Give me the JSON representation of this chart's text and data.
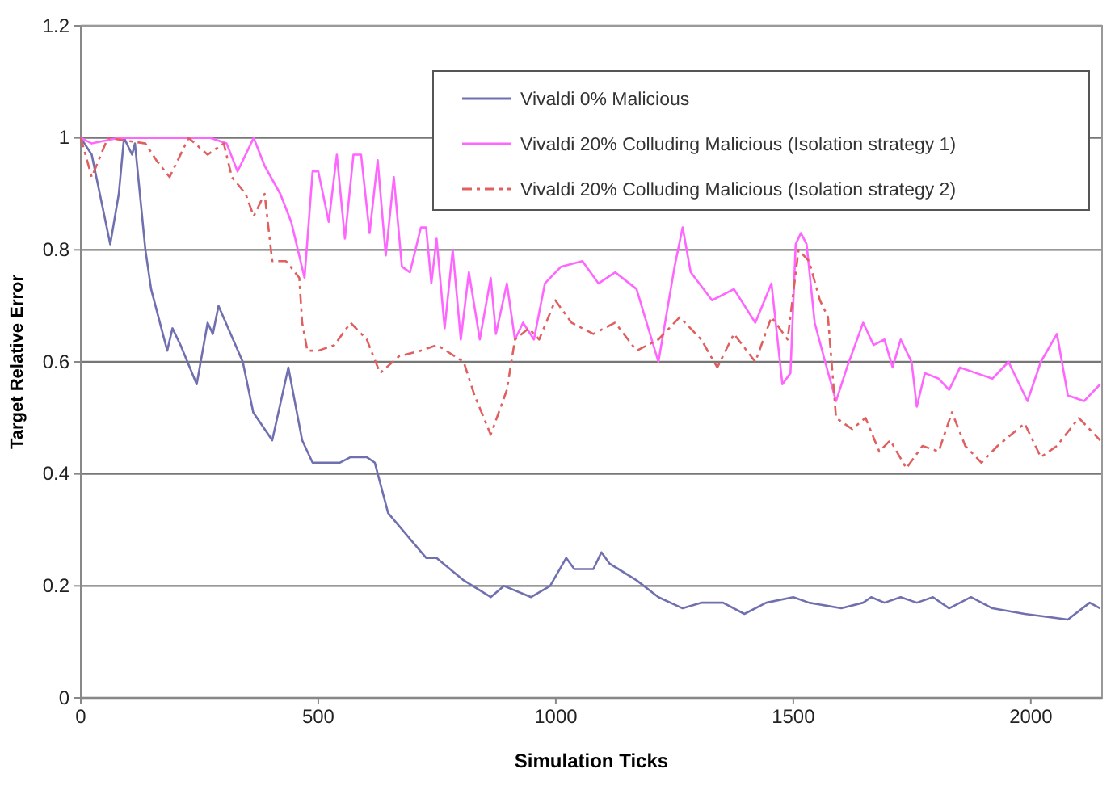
{
  "chart_data": {
    "type": "line",
    "xlabel": "Simulation Ticks",
    "ylabel": "Target Relative Error",
    "xlim": [
      0,
      2150
    ],
    "xticks": [
      0,
      500,
      1000,
      1500,
      2000
    ],
    "ylim": [
      0,
      1.2
    ],
    "yticks": [
      0,
      0.2,
      0.4,
      0.6,
      0.8,
      1,
      1.2
    ],
    "grid": "y",
    "legend": "top right",
    "marker": "none",
    "series": [
      {
        "name": "Vivaldi 0% Malicious",
        "color": "#7070b0",
        "line_style": "solid",
        "x": [
          0,
          23,
          62,
          80,
          91,
          108,
          114,
          136,
          148,
          182,
          193,
          210,
          244,
          267,
          278,
          290,
          341,
          363,
          403,
          437,
          466,
          488,
          505,
          545,
          568,
          602,
          619,
          647,
          687,
          727,
          749,
          806,
          863,
          891,
          948,
          988,
          1022,
          1039,
          1079,
          1096,
          1113,
          1170,
          1216,
          1267,
          1306,
          1352,
          1397,
          1443,
          1500,
          1533,
          1601,
          1647,
          1664,
          1692,
          1726,
          1760,
          1794,
          1828,
          1874,
          1919,
          1987,
          2078,
          2124,
          2146
        ],
        "values": [
          1.0,
          0.97,
          0.81,
          0.9,
          1.0,
          0.97,
          0.99,
          0.8,
          0.73,
          0.62,
          0.66,
          0.63,
          0.56,
          0.67,
          0.65,
          0.7,
          0.6,
          0.51,
          0.46,
          0.59,
          0.46,
          0.42,
          0.42,
          0.42,
          0.43,
          0.43,
          0.42,
          0.33,
          0.29,
          0.25,
          0.25,
          0.21,
          0.18,
          0.2,
          0.18,
          0.2,
          0.25,
          0.23,
          0.23,
          0.26,
          0.24,
          0.21,
          0.18,
          0.16,
          0.17,
          0.17,
          0.15,
          0.17,
          0.18,
          0.17,
          0.16,
          0.17,
          0.18,
          0.17,
          0.18,
          0.17,
          0.18,
          0.16,
          0.18,
          0.16,
          0.15,
          0.14,
          0.17,
          0.16
        ]
      },
      {
        "name": "Vivaldi 20% Colluding Malicious (Isolation strategy 1)",
        "color": "#ff66ff",
        "line_style": "solid",
        "x": [
          0,
          23,
          79,
          193,
          273,
          307,
          330,
          364,
          387,
          420,
          443,
          471,
          488,
          500,
          522,
          539,
          556,
          574,
          590,
          608,
          625,
          642,
          659,
          676,
          693,
          716,
          727,
          738,
          749,
          766,
          783,
          800,
          817,
          840,
          863,
          874,
          897,
          914,
          931,
          954,
          977,
          1011,
          1056,
          1090,
          1125,
          1170,
          1216,
          1250,
          1267,
          1284,
          1329,
          1375,
          1420,
          1454,
          1477,
          1494,
          1505,
          1516,
          1528,
          1545,
          1567,
          1590,
          1613,
          1647,
          1669,
          1692,
          1709,
          1726,
          1749,
          1760,
          1777,
          1806,
          1828,
          1851,
          1885,
          1919,
          1953,
          1993,
          2021,
          2055,
          2078,
          2112,
          2146
        ],
        "values": [
          1.0,
          0.99,
          1.0,
          1.0,
          1.0,
          0.99,
          0.94,
          1.0,
          0.95,
          0.9,
          0.85,
          0.75,
          0.94,
          0.94,
          0.85,
          0.97,
          0.82,
          0.97,
          0.97,
          0.83,
          0.96,
          0.79,
          0.93,
          0.77,
          0.76,
          0.84,
          0.84,
          0.74,
          0.82,
          0.66,
          0.8,
          0.64,
          0.76,
          0.64,
          0.75,
          0.65,
          0.74,
          0.64,
          0.67,
          0.64,
          0.74,
          0.77,
          0.78,
          0.74,
          0.76,
          0.73,
          0.6,
          0.77,
          0.84,
          0.76,
          0.71,
          0.73,
          0.67,
          0.74,
          0.56,
          0.58,
          0.81,
          0.83,
          0.81,
          0.67,
          0.6,
          0.53,
          0.59,
          0.67,
          0.63,
          0.64,
          0.59,
          0.64,
          0.6,
          0.52,
          0.58,
          0.57,
          0.55,
          0.59,
          0.58,
          0.57,
          0.6,
          0.53,
          0.6,
          0.65,
          0.54,
          0.53,
          0.56
        ]
      },
      {
        "name": "Vivaldi 20% Colluding Malicious (Isolation strategy 2)",
        "color": "#e06060",
        "line_style": "dashed",
        "x": [
          0,
          23,
          57,
          136,
          159,
          187,
          227,
          267,
          301,
          318,
          347,
          364,
          387,
          403,
          432,
          460,
          466,
          477,
          500,
          534,
          568,
          602,
          630,
          670,
          716,
          750,
          806,
          829,
          863,
          897,
          914,
          943,
          965,
          999,
          1033,
          1079,
          1125,
          1170,
          1216,
          1261,
          1306,
          1340,
          1375,
          1420,
          1454,
          1488,
          1511,
          1533,
          1556,
          1573,
          1590,
          1624,
          1652,
          1681,
          1704,
          1738,
          1772,
          1806,
          1834,
          1862,
          1896,
          1930,
          1987,
          2021,
          2055,
          2101,
          2146
        ],
        "values": [
          1.0,
          0.93,
          1.0,
          0.99,
          0.96,
          0.93,
          1.0,
          0.97,
          0.99,
          0.93,
          0.9,
          0.86,
          0.9,
          0.78,
          0.78,
          0.75,
          0.67,
          0.62,
          0.62,
          0.63,
          0.67,
          0.64,
          0.58,
          0.61,
          0.62,
          0.63,
          0.6,
          0.54,
          0.47,
          0.55,
          0.64,
          0.66,
          0.64,
          0.71,
          0.67,
          0.65,
          0.67,
          0.62,
          0.64,
          0.68,
          0.64,
          0.59,
          0.65,
          0.6,
          0.68,
          0.64,
          0.8,
          0.78,
          0.71,
          0.68,
          0.5,
          0.48,
          0.5,
          0.44,
          0.46,
          0.41,
          0.45,
          0.44,
          0.51,
          0.45,
          0.42,
          0.45,
          0.49,
          0.43,
          0.45,
          0.5,
          0.46
        ]
      }
    ]
  }
}
